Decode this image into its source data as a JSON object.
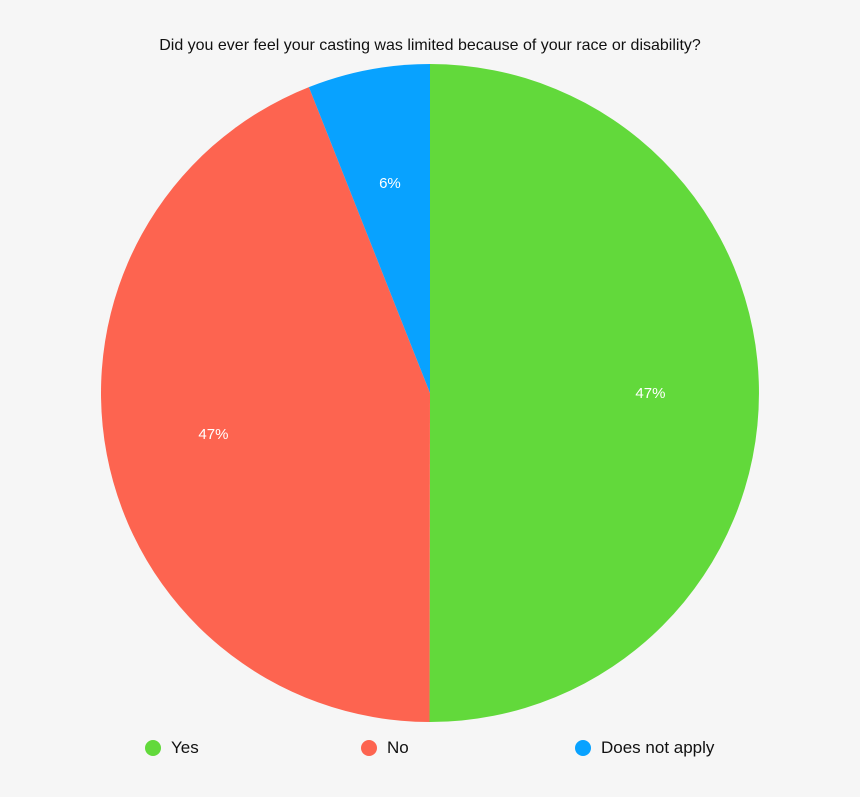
{
  "chart_data": {
    "type": "pie",
    "title": "Did you ever feel your casting was limited because of your race or disability?",
    "slices": [
      {
        "name": "Yes",
        "value": 47,
        "label": "47%",
        "color": "#62d93b"
      },
      {
        "name": "No",
        "value": 47,
        "label": "47%",
        "color": "#fd6450"
      },
      {
        "name": "Does not apply",
        "value": 6,
        "label": "6%",
        "color": "#08a2ff"
      }
    ],
    "legend_position": "bottom",
    "start_angle": "12 o'clock",
    "direction": "clockwise"
  }
}
